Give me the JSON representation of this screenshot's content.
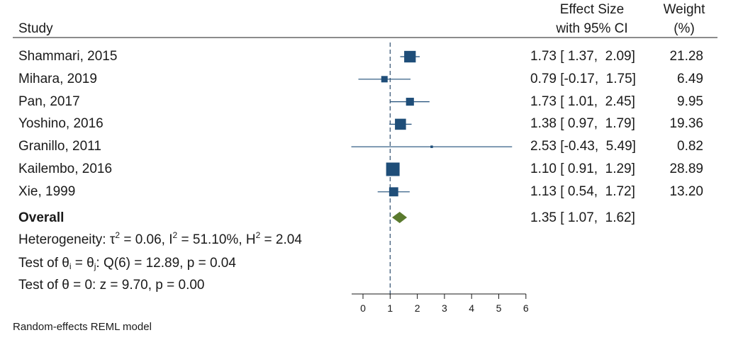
{
  "header": {
    "study": "Study",
    "effect_line1": "Effect Size",
    "effect_line2": "with 95% CI",
    "weight_line1": "Weight",
    "weight_line2": "(%)"
  },
  "colors": {
    "marker": "#1f4e79",
    "diamond": "#5a7a2e",
    "ref_line": "#2f4f6f",
    "text": "#1a1a1a"
  },
  "chart_data": {
    "type": "forest",
    "xlim": [
      0,
      6
    ],
    "xticks": [
      "0",
      "1",
      "2",
      "3",
      "4",
      "5",
      "6"
    ],
    "reference_line": 1,
    "studies": [
      {
        "name": "Shammari, 2015",
        "es": 1.73,
        "lo": 1.37,
        "hi": 2.09,
        "ci_text": "1.73 [ 1.37,  2.09]",
        "weight": 21.28,
        "weight_text": "21.28"
      },
      {
        "name": "Mihara, 2019",
        "es": 0.79,
        "lo": -0.17,
        "hi": 1.75,
        "ci_text": "0.79 [-0.17,  1.75]",
        "weight": 6.49,
        "weight_text": "6.49"
      },
      {
        "name": "Pan, 2017",
        "es": 1.73,
        "lo": 1.01,
        "hi": 2.45,
        "ci_text": "1.73 [ 1.01,  2.45]",
        "weight": 9.95,
        "weight_text": "9.95"
      },
      {
        "name": "Yoshino, 2016",
        "es": 1.38,
        "lo": 0.97,
        "hi": 1.79,
        "ci_text": "1.38 [ 0.97,  1.79]",
        "weight": 19.36,
        "weight_text": "19.36"
      },
      {
        "name": "Granillo, 2011",
        "es": 2.53,
        "lo": -0.43,
        "hi": 5.49,
        "ci_text": "2.53 [-0.43,  5.49]",
        "weight": 0.82,
        "weight_text": "0.82"
      },
      {
        "name": "Kailembo, 2016",
        "es": 1.1,
        "lo": 0.91,
        "hi": 1.29,
        "ci_text": "1.10 [ 0.91,  1.29]",
        "weight": 28.89,
        "weight_text": "28.89"
      },
      {
        "name": "Xie, 1999",
        "es": 1.13,
        "lo": 0.54,
        "hi": 1.72,
        "ci_text": "1.13 [ 0.54,  1.72]",
        "weight": 13.2,
        "weight_text": "13.20"
      }
    ],
    "overall": {
      "name": "Overall",
      "es": 1.35,
      "lo": 1.07,
      "hi": 1.62,
      "ci_text": "1.35 [ 1.07,  1.62]"
    },
    "heterogeneity": {
      "prefix": "Heterogeneity: τ",
      "tau2": " = 0.06, I",
      "i2": " = 51.10%, H",
      "h2": " = 2.04",
      "sup": "2"
    },
    "test_homogeneity": {
      "prefix": "Test of θ",
      "sub_i": "i",
      "mid": " = θ",
      "sub_j": "j",
      "suffix": ": Q(6) = 12.89, p = 0.04"
    },
    "test_overall": "Test of θ = 0: z = 9.70, p = 0.00",
    "footnote": "Random-effects REML model"
  }
}
